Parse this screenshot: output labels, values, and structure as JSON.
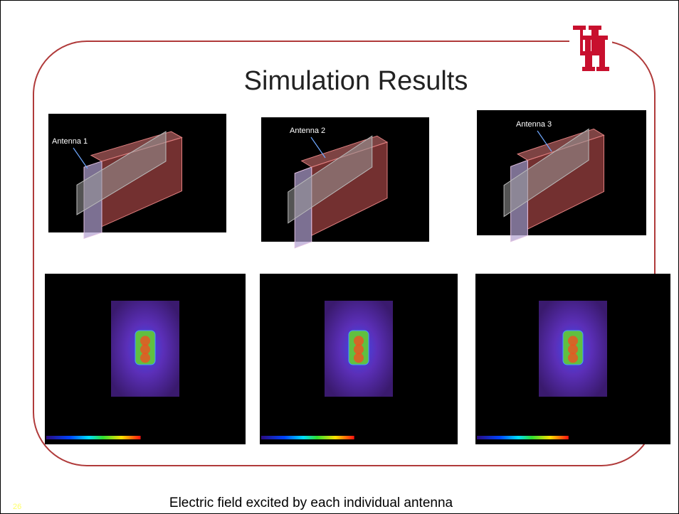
{
  "header": {
    "title": "Simulation Results"
  },
  "panels": [
    {
      "label": "Antenna 1"
    },
    {
      "label": "Antenna 2"
    },
    {
      "label": "Antenna 3"
    }
  ],
  "caption": "Electric field excited by each individual antenna",
  "footer": {
    "slide_number": "26"
  }
}
